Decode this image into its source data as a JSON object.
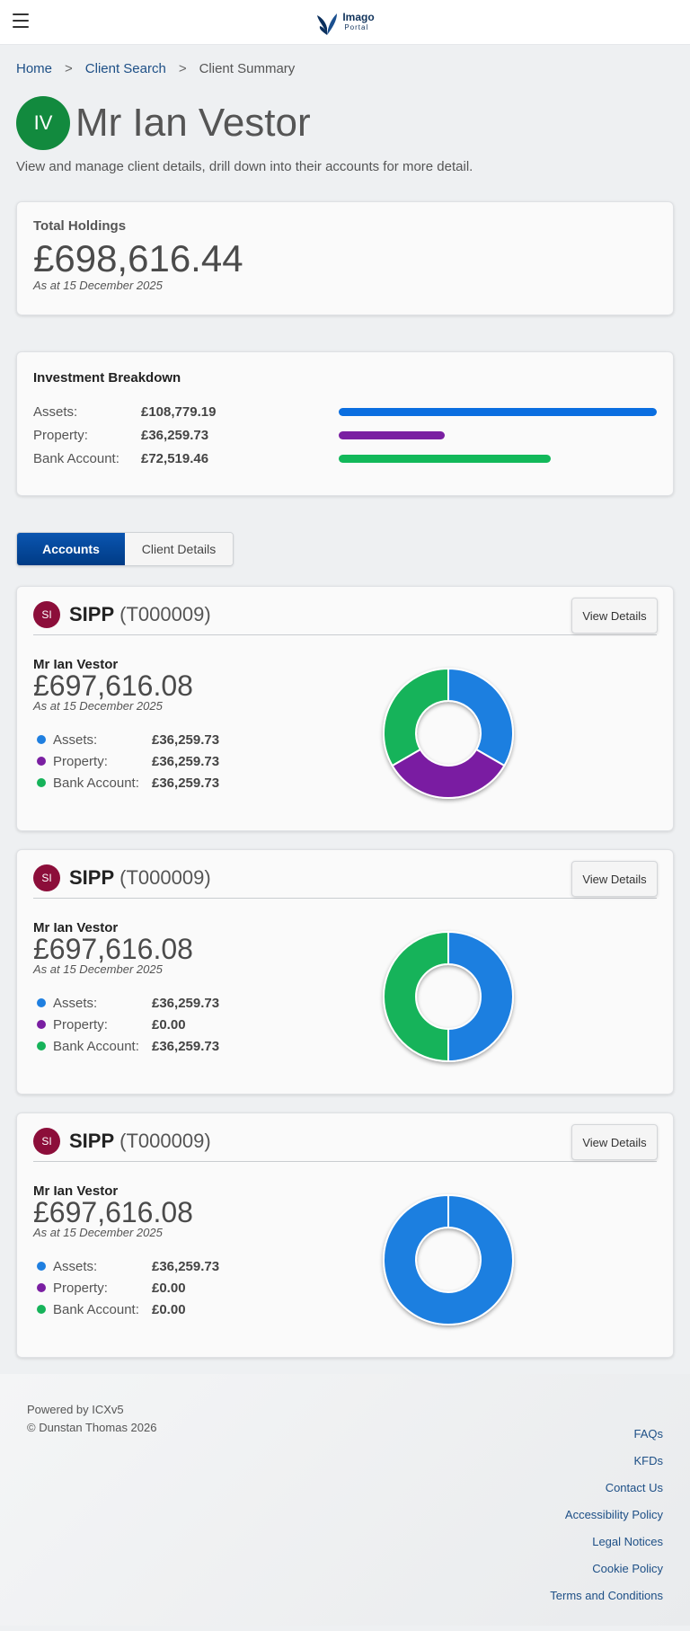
{
  "brand": {
    "name_line1": "Imago",
    "name_line2": "Portal"
  },
  "breadcrumb": {
    "home": "Home",
    "search": "Client Search",
    "current": "Client Summary",
    "sep": ">"
  },
  "client": {
    "initials": "IV",
    "name": "Mr Ian Vestor",
    "description": "View and manage client details, drill down into their accounts for more detail."
  },
  "holdings": {
    "label": "Total Holdings",
    "amount": "£698,616.44",
    "as_at": "As at 15 December 2025"
  },
  "breakdown": {
    "label": "Investment Breakdown",
    "rows": [
      {
        "name": "Assets:",
        "value": "£108,779.19",
        "fraction": 1.0,
        "color": "#0a6ee0"
      },
      {
        "name": "Property:",
        "value": "£36,259.73",
        "fraction": 0.333,
        "color": "#7a1fa2"
      },
      {
        "name": "Bank Account:",
        "value": "£72,519.46",
        "fraction": 0.667,
        "color": "#12b85a"
      }
    ]
  },
  "tabs": {
    "accounts": "Accounts",
    "client_details": "Client Details"
  },
  "accounts": [
    {
      "badge": "SI",
      "title": "SIPP",
      "code": "(T000009)",
      "button": "View Details",
      "client": "Mr Ian Vestor",
      "amount": "£697,616.08",
      "as_at": "As at 15 December 2025",
      "legend": [
        {
          "name": "Assets:",
          "value": "£36,259.73"
        },
        {
          "name": "Property:",
          "value": "£36,259.73"
        },
        {
          "name": "Bank Account:",
          "value": "£36,259.73"
        }
      ],
      "donut": [
        36259.73,
        36259.73,
        36259.73
      ]
    },
    {
      "badge": "SI",
      "title": "SIPP",
      "code": "(T000009)",
      "button": "View Details",
      "client": "Mr Ian Vestor",
      "amount": "£697,616.08",
      "as_at": "As at 15 December 2025",
      "legend": [
        {
          "name": "Assets:",
          "value": "£36,259.73"
        },
        {
          "name": "Property:",
          "value": "£0.00"
        },
        {
          "name": "Bank Account:",
          "value": "£36,259.73"
        }
      ],
      "donut": [
        36259.73,
        0,
        36259.73
      ]
    },
    {
      "badge": "SI",
      "title": "SIPP",
      "code": "(T000009)",
      "button": "View Details",
      "client": "Mr Ian Vestor",
      "amount": "£697,616.08",
      "as_at": "As at 15 December 2025",
      "legend": [
        {
          "name": "Assets:",
          "value": "£36,259.73"
        },
        {
          "name": "Property:",
          "value": "£0.00"
        },
        {
          "name": "Bank Account:",
          "value": "£0.00"
        }
      ],
      "donut": [
        36259.73,
        0,
        0
      ]
    }
  ],
  "series_colors": [
    "#1f7fe0",
    "#7a1fa2",
    "#16b35a"
  ],
  "footer": {
    "powered": "Powered by ICXv5",
    "copyright": "© Dunstan Thomas 2026",
    "links": [
      "FAQs",
      "KFDs",
      "Contact Us",
      "Accessibility Policy",
      "Legal Notices",
      "Cookie Policy",
      "Terms and Conditions"
    ]
  },
  "icons": {
    "menu": "hamburger-menu-icon",
    "logo": "butterfly-logo-icon"
  }
}
